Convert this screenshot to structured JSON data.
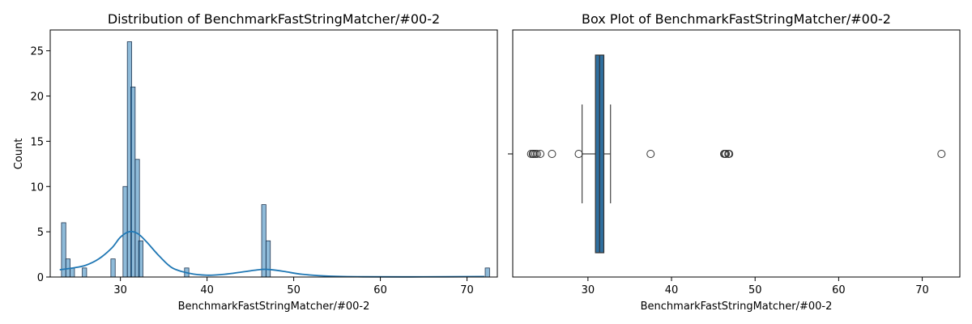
{
  "chart_data": [
    {
      "type": "histogram",
      "title": "Distribution of BenchmarkFastStringMatcher/#00-2",
      "xlabel": "BenchmarkFastStringMatcher/#00-2",
      "ylabel": "Count",
      "xlim": [
        21.9,
        73.5
      ],
      "ylim": [
        0,
        27.3
      ],
      "x_ticks": [
        30,
        40,
        50,
        60,
        70
      ],
      "y_ticks": [
        0,
        5,
        10,
        15,
        20,
        25
      ],
      "bin_width": 0.5,
      "bins": [
        {
          "start": 23.2,
          "count": 6
        },
        {
          "start": 23.7,
          "count": 2
        },
        {
          "start": 24.2,
          "count": 1
        },
        {
          "start": 25.6,
          "count": 1
        },
        {
          "start": 28.9,
          "count": 2
        },
        {
          "start": 30.3,
          "count": 10
        },
        {
          "start": 30.8,
          "count": 26
        },
        {
          "start": 31.2,
          "count": 21
        },
        {
          "start": 31.7,
          "count": 13
        },
        {
          "start": 32.1,
          "count": 4
        },
        {
          "start": 37.4,
          "count": 1
        },
        {
          "start": 46.3,
          "count": 8
        },
        {
          "start": 46.8,
          "count": 4
        },
        {
          "start": 72.1,
          "count": 1
        }
      ],
      "kde": {
        "x": [
          23.0,
          24.5,
          26.0,
          27.5,
          29.0,
          30.0,
          31.0,
          32.0,
          33.0,
          34.5,
          36.0,
          38.0,
          40.0,
          42.0,
          44.0,
          45.5,
          46.5,
          47.5,
          49.0,
          51.0,
          54.0,
          58.0,
          65.0,
          72.0
        ],
        "y": [
          0.8,
          1.0,
          1.3,
          2.0,
          3.2,
          4.4,
          5.0,
          4.8,
          3.9,
          2.3,
          1.0,
          0.4,
          0.2,
          0.3,
          0.55,
          0.75,
          0.85,
          0.8,
          0.6,
          0.3,
          0.1,
          0.03,
          0.02,
          0.05
        ]
      }
    },
    {
      "type": "box",
      "title": "Box Plot of BenchmarkFastStringMatcher/#00-2",
      "xlabel": "BenchmarkFastStringMatcher/#00-2",
      "xlim": [
        21.0,
        74.5
      ],
      "x_ticks": [
        30,
        40,
        50,
        60,
        70
      ],
      "box": {
        "q1": 30.9,
        "median": 31.4,
        "q3": 31.9,
        "whisker_low": 29.3,
        "whisker_high": 32.7
      },
      "box_color": "#2f6f9f",
      "outliers": [
        23.2,
        23.4,
        23.5,
        23.7,
        23.9,
        24.3,
        25.7,
        28.9,
        37.5,
        46.3,
        46.4,
        46.5,
        46.8,
        46.9,
        72.3
      ]
    }
  ]
}
